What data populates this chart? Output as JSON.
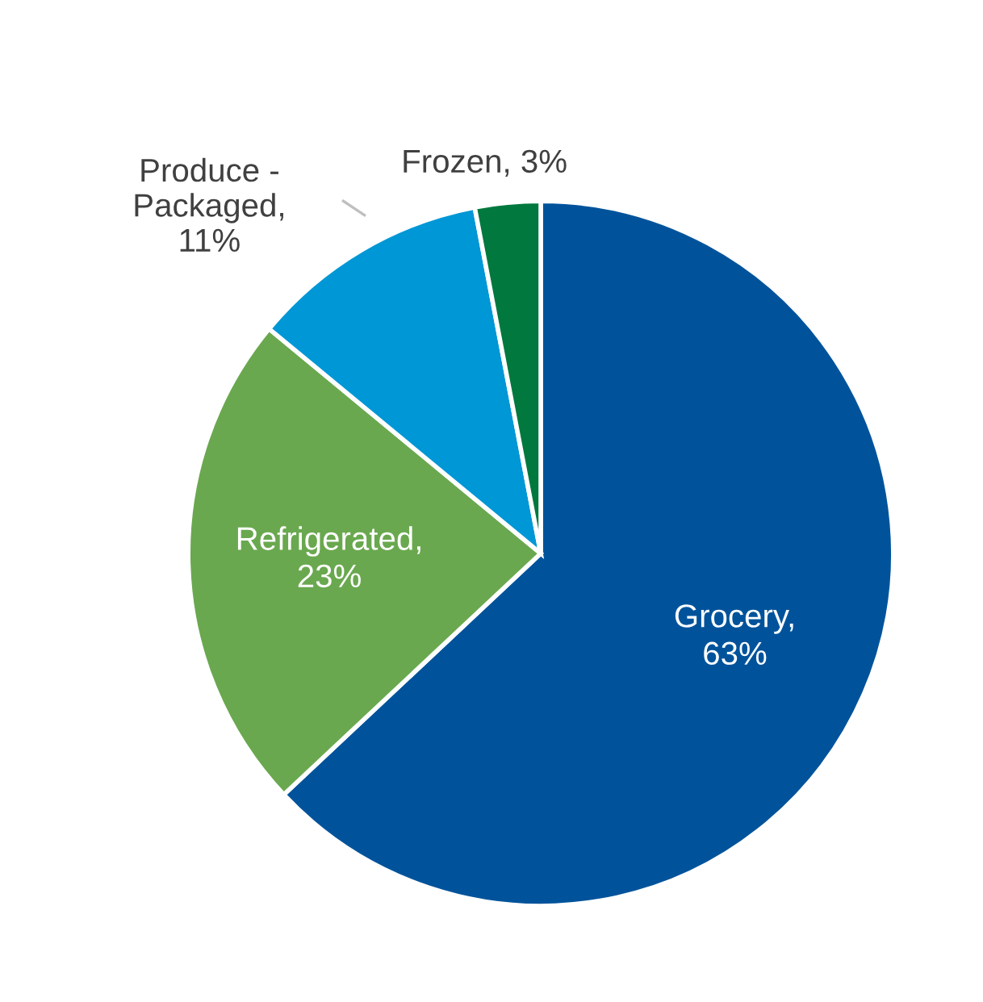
{
  "chart_data": {
    "type": "pie",
    "categories": [
      "Grocery",
      "Refrigerated",
      "Produce -\nPackaged",
      "Frozen"
    ],
    "values": [
      63,
      23,
      11,
      3
    ],
    "colors": [
      "#00539b",
      "#6aa84f",
      "#0097d6",
      "#00783e"
    ],
    "value_labels": [
      ",\n63%",
      ",\n23%",
      ",\n11%",
      ", 3%"
    ],
    "legend": false
  }
}
